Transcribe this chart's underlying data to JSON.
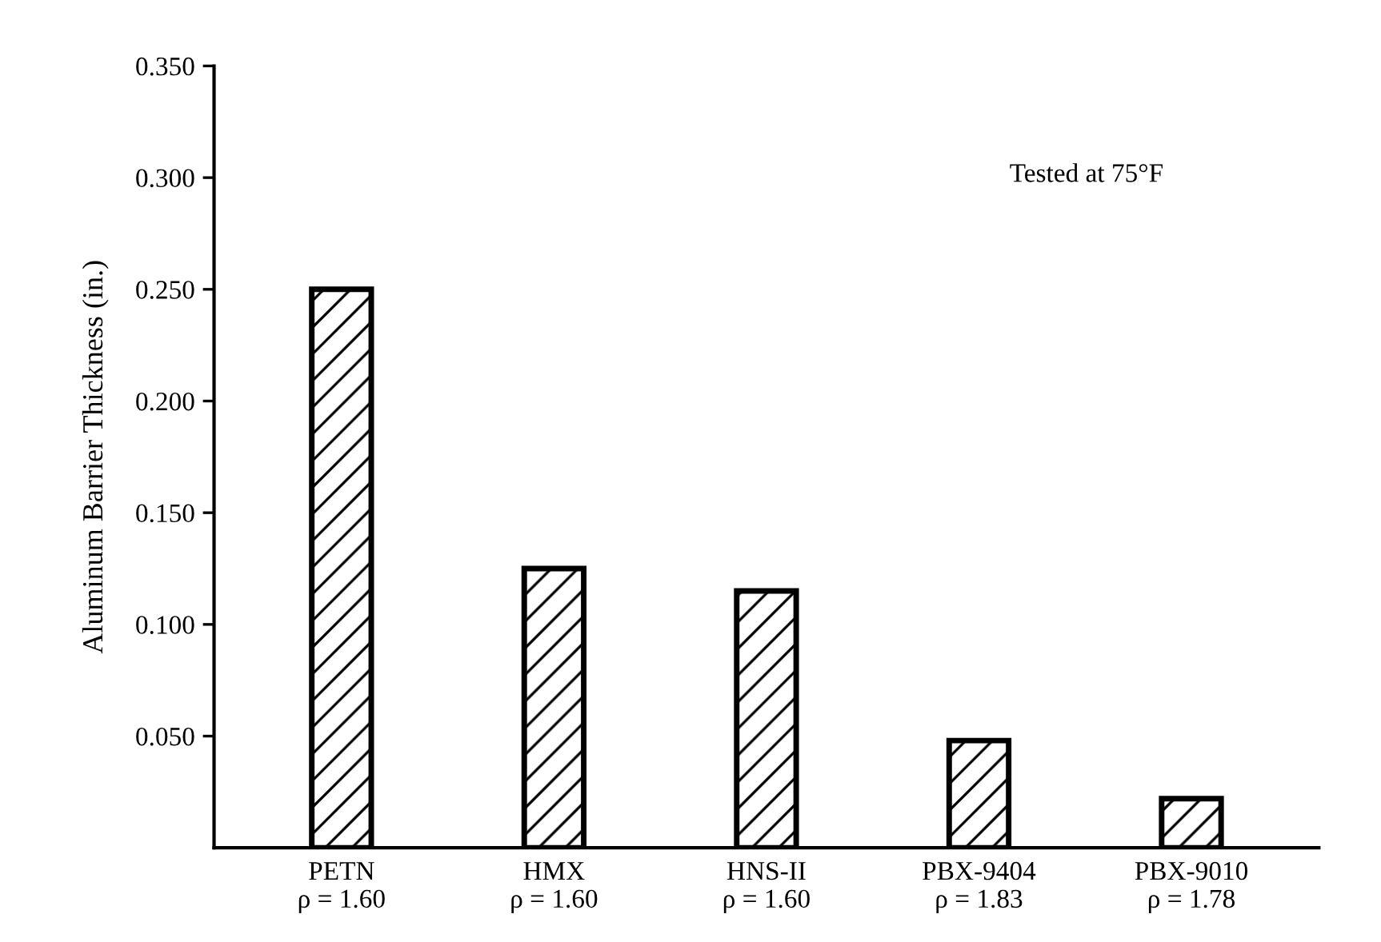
{
  "chart_data": {
    "type": "bar",
    "ylabel": "Aluminum Barrier Thickness (in.)",
    "categories": [
      "PETN\nρ = 1.60",
      "HMX\nρ = 1.60",
      "HNS-II\nρ = 1.60",
      "PBX-9404\nρ = 1.83",
      "PBX-9010\nρ = 1.78"
    ],
    "values": [
      0.25,
      0.125,
      0.115,
      0.048,
      0.022
    ],
    "color": "#000000",
    "ylim": [
      0,
      0.35
    ],
    "yticks": [
      {
        "value": 0.05,
        "label": "0.050"
      },
      {
        "value": 0.1,
        "label": "0.100"
      },
      {
        "value": 0.15,
        "label": "0.150"
      },
      {
        "value": 0.2,
        "label": "0.200"
      },
      {
        "value": 0.25,
        "label": "0.250"
      },
      {
        "value": 0.3,
        "label": "0.300"
      },
      {
        "value": 0.35,
        "label": "0.350"
      }
    ],
    "grid": false,
    "annotations": [
      "Tested at 75°F"
    ]
  }
}
